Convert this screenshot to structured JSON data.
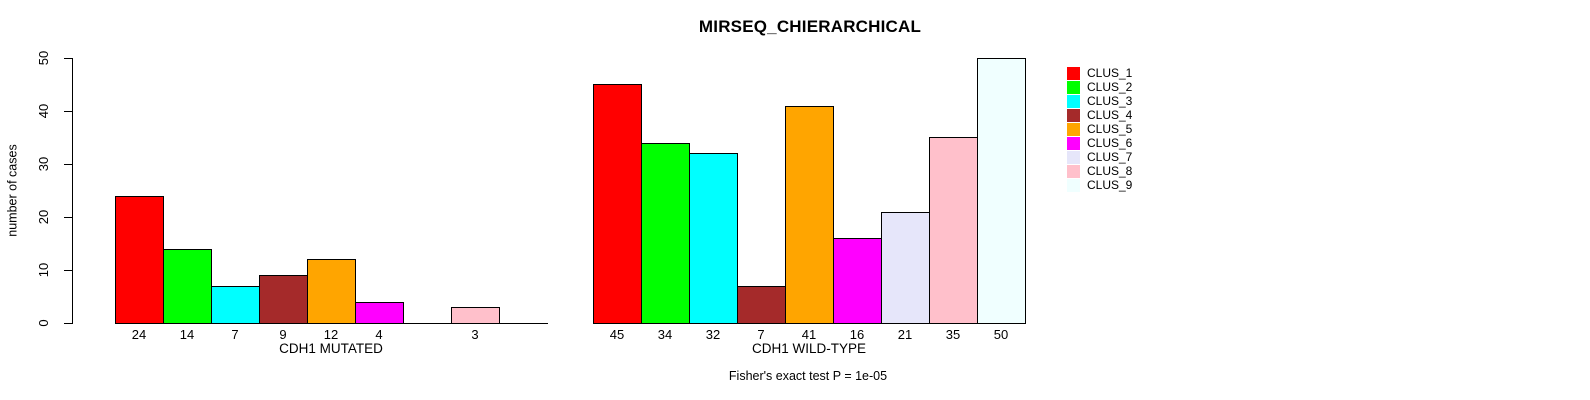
{
  "title": "MIRSEQ_CHIERARCHICAL",
  "y_axis": {
    "label": "number of cases",
    "ticks": [
      0,
      10,
      20,
      30,
      40,
      50
    ]
  },
  "footer": "Fisher's exact test P = 1e-05",
  "legend": {
    "items": [
      {
        "label": "CLUS_1",
        "color": "#FF0000"
      },
      {
        "label": "CLUS_2",
        "color": "#00FF00"
      },
      {
        "label": "CLUS_3",
        "color": "#00FFFF"
      },
      {
        "label": "CLUS_4",
        "color": "#A52A2A"
      },
      {
        "label": "CLUS_5",
        "color": "#FFA500"
      },
      {
        "label": "CLUS_6",
        "color": "#FF00FF"
      },
      {
        "label": "CLUS_7",
        "color": "#E6E6FA"
      },
      {
        "label": "CLUS_8",
        "color": "#FFC0CB"
      },
      {
        "label": "CLUS_9",
        "color": "#F0FFFF"
      }
    ]
  },
  "chart_data": {
    "type": "bar",
    "title": "MIRSEQ_CHIERARCHICAL",
    "xlabel": "",
    "ylabel": "number of cases",
    "ylim": [
      0,
      50
    ],
    "yticks": [
      0,
      10,
      20,
      30,
      40,
      50
    ],
    "grid": false,
    "legend_position": "right-outside",
    "annotation": "Fisher's exact test P = 1e-05",
    "series": [
      "CLUS_1",
      "CLUS_2",
      "CLUS_3",
      "CLUS_4",
      "CLUS_5",
      "CLUS_6",
      "CLUS_7",
      "CLUS_8",
      "CLUS_9"
    ],
    "series_colors": [
      "#FF0000",
      "#00FF00",
      "#00FFFF",
      "#A52A2A",
      "#FFA500",
      "#FF00FF",
      "#E6E6FA",
      "#FFC0CB",
      "#F0FFFF"
    ],
    "groups": [
      {
        "label": "CDH1 MUTATED",
        "values": [
          24,
          14,
          7,
          9,
          12,
          4,
          0,
          3,
          0
        ]
      },
      {
        "label": "CDH1 WILD-TYPE",
        "values": [
          45,
          34,
          32,
          7,
          41,
          16,
          21,
          35,
          50
        ]
      }
    ]
  }
}
